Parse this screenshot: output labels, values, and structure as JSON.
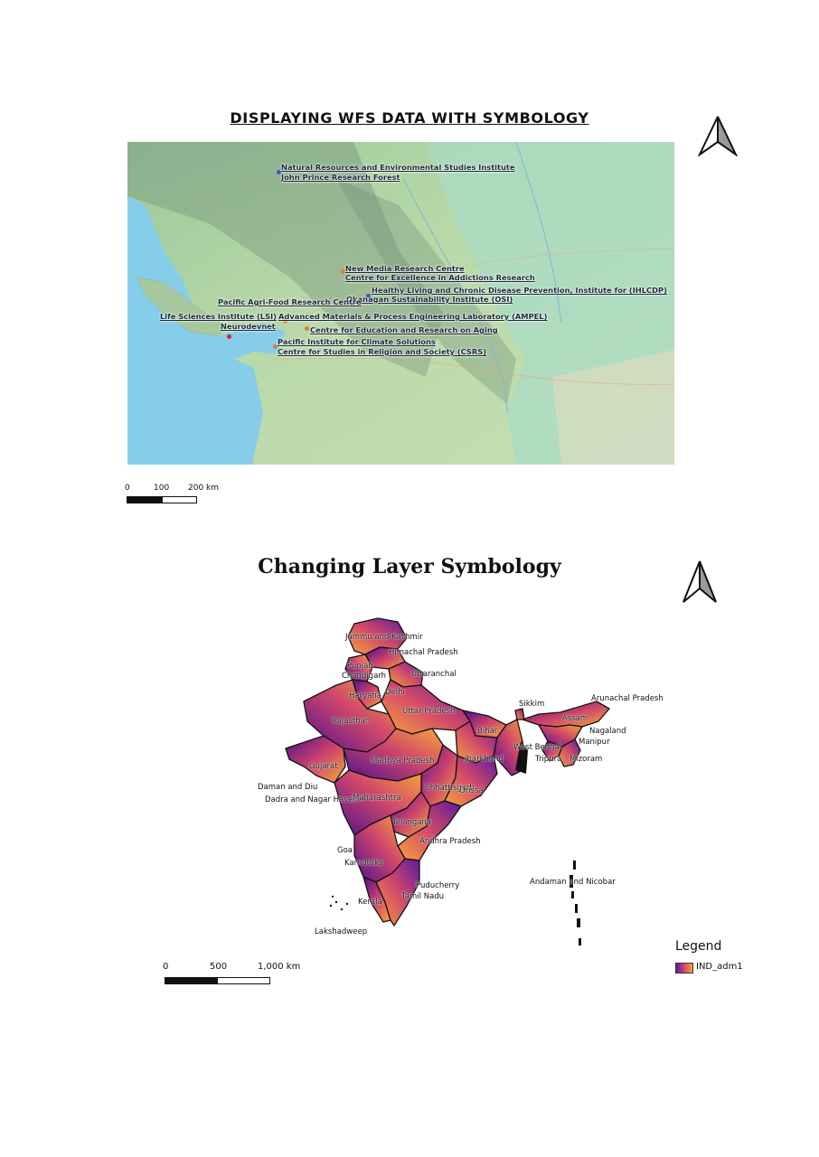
{
  "map1": {
    "title": "DISPLAYING WFS DATA WITH SYMBOLOGY",
    "places": [
      {
        "name": "Natural Resources and Environmental  Studies Institute",
        "color": "#2b5fc8"
      },
      {
        "name": "John Prince Research Forest",
        "color": "#2b5fc8"
      },
      {
        "name": "New Media Research Centre",
        "color": "#e07a2e"
      },
      {
        "name": "Centre for Excellence in Addictions Research",
        "color": "#e07a2e"
      },
      {
        "name": "Healthy Living and Chronic Disease Prevention, Institute for (IHLCDP)",
        "color": "#2b5fc8"
      },
      {
        "name": "Okanagan Sustainability Institute (OSI)",
        "color": "#2b5fc8"
      },
      {
        "name": "Pacific Agri-Food Research Centre",
        "color": "#e07a2e"
      },
      {
        "name": "Life Sciences Institute (LSI)",
        "color": "#2b5fc8"
      },
      {
        "name": "Advanced Materials & Process Engineering Laboratory (AMPEL)",
        "color": "#e07a2e"
      },
      {
        "name": "Neurodevnet",
        "color": "#d12a2a"
      },
      {
        "name": "Centre for Education and Research on Aging",
        "color": "#e07a2e"
      },
      {
        "name": "Pacific Institute for Climate Solutions",
        "color": "#e07a2e"
      },
      {
        "name": "Centre for Studies in Religion and Society (CSRS)",
        "color": "#e07a2e"
      }
    ],
    "scale": {
      "ticks": [
        "0",
        "100",
        "200 km"
      ]
    }
  },
  "map2": {
    "title": "Changing Layer Symbology",
    "states": [
      "Jammu and Kashmir",
      "Himachal Pradesh",
      "Punjab",
      "Chandigarh",
      "Uttaranchal",
      "Haryana",
      "Delhi",
      "Rajasthan",
      "Uttar Pradesh",
      "Sikkim",
      "Arunachal Pradesh",
      "Assam",
      "Bihar",
      "Nagaland",
      "Manipur",
      "West Bengal",
      "Tripura",
      "Mizoram",
      "Gujarat",
      "Madhya Pradesh",
      "Jharkhand",
      "Daman and Diu",
      "Dadra and Nagar Haveli",
      "Chhattisgarh",
      "Orissa",
      "Maharashtra",
      "Telangana",
      "Andhra Pradesh",
      "Goa",
      "Karnataka",
      "Puducherry",
      "Andaman and Nicobar",
      "Kerala",
      "Tamil Nadu",
      "Lakshadweep"
    ],
    "scale": {
      "ticks": [
        "0",
        "500",
        "1,000 km"
      ]
    },
    "legend": {
      "title": "Legend",
      "layer": "IND_adm1",
      "colors": [
        "#5a1a9a",
        "#d24a6a",
        "#f7a33a"
      ]
    }
  }
}
